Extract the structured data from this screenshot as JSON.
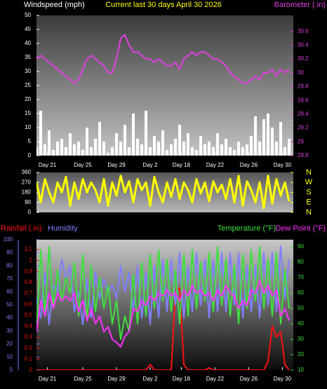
{
  "chart_data": [
    {
      "type": "combo",
      "title": "Current last 30 days April 30 2026",
      "x": [
        0,
        0.5,
        1,
        1.5,
        2,
        2.5,
        3,
        3.5,
        4,
        4.5,
        5,
        5.5,
        6,
        6.5,
        7,
        7.5,
        8,
        8.5,
        9,
        9.5,
        10,
        10.5,
        11,
        11.5,
        12,
        12.5,
        13,
        13.5,
        14,
        14.5,
        15,
        15.5,
        16,
        16.5,
        17,
        17.5,
        18,
        18.5,
        19,
        19.5,
        20,
        20.5,
        21,
        21.5,
        22,
        22.5,
        23,
        23.5,
        24,
        24.5,
        25,
        25.5,
        26,
        26.5,
        27,
        27.5,
        28,
        28.5,
        29,
        29.5,
        30
      ],
      "xlim": [
        0,
        30.5
      ],
      "xticks": [
        {
          "value": 1.3,
          "label": "Day 21"
        },
        {
          "value": 5.5,
          "label": "Day 25"
        },
        {
          "value": 9.5,
          "label": "Day 29"
        },
        {
          "value": 13.5,
          "label": "Day 2"
        },
        {
          "value": 17.2,
          "label": "Day 18"
        },
        {
          "value": 21.2,
          "label": "Day 22"
        },
        {
          "value": 25.2,
          "label": "Day 26"
        },
        {
          "value": 29.2,
          "label": "Day 30"
        }
      ],
      "ylim": [
        0,
        50
      ],
      "yticks": [
        0,
        5,
        10,
        15,
        20,
        25,
        30,
        35,
        40,
        45,
        50
      ],
      "y2lim": [
        28.8,
        30.83
      ],
      "y2ticks": [
        28.8,
        29,
        29.2,
        29.4,
        29.6,
        29.8,
        30,
        30.2,
        30.4,
        30.6
      ],
      "series": [
        {
          "name": "Windspeed (mph)",
          "type": "bar",
          "color": "#ffffff",
          "values": [
            3,
            16,
            4,
            9,
            2,
            5,
            6,
            3,
            8,
            4,
            5,
            2,
            10,
            3,
            6,
            12,
            5,
            1,
            3,
            8,
            5,
            11,
            3,
            15,
            6,
            4,
            16,
            3,
            7,
            5,
            9,
            2,
            4,
            6,
            11,
            5,
            8,
            3,
            2,
            7,
            4,
            5,
            3,
            8,
            4,
            6,
            3,
            2,
            5,
            3,
            4,
            7,
            14,
            5,
            13,
            15,
            10,
            5,
            12,
            3,
            6
          ]
        },
        {
          "name": "Barometer (.in)",
          "type": "line",
          "axis": "y2",
          "color": "#e040e0",
          "values": [
            30.2,
            30.25,
            30.2,
            30.15,
            30.1,
            30.05,
            30.0,
            29.95,
            29.9,
            29.85,
            29.9,
            30.05,
            30.2,
            30.25,
            30.2,
            30.15,
            30.1,
            30.0,
            30.0,
            30.2,
            30.5,
            30.55,
            30.4,
            30.3,
            30.3,
            30.25,
            30.2,
            30.2,
            30.15,
            30.2,
            30.15,
            30.1,
            30.1,
            30.15,
            30.05,
            30.2,
            30.25,
            30.3,
            30.25,
            30.3,
            30.3,
            30.25,
            30.2,
            30.2,
            30.15,
            30.1,
            30.0,
            29.95,
            29.9,
            29.85,
            29.85,
            29.9,
            29.95,
            29.9,
            30.0,
            30.0,
            30.05,
            29.95,
            30.05,
            30.0,
            30.05
          ]
        }
      ]
    },
    {
      "type": "line",
      "x": [
        0,
        0.5,
        1,
        1.5,
        2,
        2.5,
        3,
        3.5,
        4,
        4.5,
        5,
        5.5,
        6,
        6.5,
        7,
        7.5,
        8,
        8.5,
        9,
        9.5,
        10,
        10.5,
        11,
        11.5,
        12,
        12.5,
        13,
        13.5,
        14,
        14.5,
        15,
        15.5,
        16,
        16.5,
        17,
        17.5,
        18,
        18.5,
        19,
        19.5,
        20,
        20.5,
        21,
        21.5,
        22,
        22.5,
        23,
        23.5,
        24,
        24.5,
        25,
        25.5,
        26,
        26.5,
        27,
        27.5,
        28,
        28.5,
        29,
        29.5,
        30
      ],
      "xlim": [
        0,
        30.5
      ],
      "ylim": [
        0,
        360
      ],
      "yticks": [
        0,
        90,
        180,
        270,
        360
      ],
      "y2lim": [
        0,
        360
      ],
      "y2ticks": [
        {
          "value": 360,
          "label": "N"
        },
        {
          "value": 270,
          "label": "W"
        },
        {
          "value": 180,
          "label": "S"
        },
        {
          "value": 90,
          "label": "E"
        },
        {
          "value": 0,
          "label": "N"
        }
      ],
      "series": [
        {
          "color": "#ffff00",
          "values": [
            270,
            90,
            300,
            180,
            90,
            270,
            180,
            320,
            60,
            270,
            120,
            300,
            180,
            270,
            200,
            90,
            300,
            60,
            270,
            150,
            330,
            180,
            280,
            90,
            300,
            200,
            270,
            60,
            320,
            180,
            90,
            270,
            140,
            300,
            120,
            270,
            200,
            90,
            300,
            170,
            270,
            100,
            280,
            180,
            250,
            120,
            300,
            90,
            330,
            60,
            280,
            200,
            90,
            270,
            40,
            330,
            80,
            300,
            150,
            270,
            100
          ]
        }
      ]
    },
    {
      "type": "line",
      "x": [
        0,
        0.5,
        1,
        1.5,
        2,
        2.5,
        3,
        3.5,
        4,
        4.5,
        5,
        5.5,
        6,
        6.5,
        7,
        7.5,
        8,
        8.5,
        9,
        9.5,
        10,
        10.5,
        11,
        11.5,
        12,
        12.5,
        13,
        13.5,
        14,
        14.5,
        15,
        15.5,
        16,
        16.5,
        17,
        17.5,
        18,
        18.5,
        19,
        19.5,
        20,
        20.5,
        21,
        21.5,
        22,
        22.5,
        23,
        23.5,
        24,
        24.5,
        25,
        25.5,
        26,
        26.5,
        27,
        27.5,
        28,
        28.5,
        29,
        29.5,
        30
      ],
      "xlim": [
        0,
        30.5
      ],
      "xticks": [
        {
          "value": 1.3,
          "label": "Day 21"
        },
        {
          "value": 5.5,
          "label": "Day 25"
        },
        {
          "value": 9.5,
          "label": "Day 29"
        },
        {
          "value": 13.5,
          "label": "Day 2"
        },
        {
          "value": 17.2,
          "label": "Day 18"
        },
        {
          "value": 21.2,
          "label": "Day 22"
        },
        {
          "value": 25.2,
          "label": "Day 26"
        },
        {
          "value": 29.2,
          "label": "Day 30"
        }
      ],
      "ylim": [
        0,
        1.19
      ],
      "yticks": [
        0,
        0.1,
        0.2,
        0.3,
        0.4,
        0.5,
        0.6,
        0.7,
        0.8,
        0.9,
        1,
        1.1
      ],
      "y3lim": [
        0,
        100
      ],
      "y3ticks": [
        0,
        10,
        20,
        30,
        40,
        50,
        60,
        70,
        80,
        90,
        100
      ],
      "y2lim": [
        10,
        94.6
      ],
      "y2ticks": [
        10,
        20,
        30,
        40,
        50,
        60,
        70,
        80,
        90
      ],
      "series": [
        {
          "name": "Rainfall (.in)",
          "color": "#ff1010",
          "values": [
            0,
            0,
            0,
            0,
            0,
            0,
            0,
            0,
            0,
            0,
            0,
            0,
            0,
            0,
            0,
            0,
            0,
            0,
            0,
            0,
            0,
            0,
            0,
            0,
            0,
            0,
            0,
            0.05,
            0,
            0,
            0,
            0,
            0,
            0.72,
            0.75,
            0.05,
            0,
            0,
            0,
            0,
            0,
            0.02,
            0,
            0,
            0,
            0,
            0,
            0,
            0,
            0,
            0,
            0,
            0,
            0,
            0,
            0.08,
            0.4,
            0.3,
            0.35,
            0.05,
            0
          ]
        },
        {
          "name": "Humidity",
          "axis": "y3",
          "color": "#8080ff",
          "values": [
            55,
            40,
            75,
            35,
            65,
            60,
            85,
            70,
            80,
            45,
            60,
            35,
            70,
            40,
            75,
            55,
            70,
            60,
            65,
            55,
            80,
            60,
            75,
            45,
            80,
            40,
            75,
            35,
            80,
            40,
            85,
            45,
            85,
            50,
            90,
            40,
            80,
            45,
            90,
            50,
            85,
            40,
            85,
            45,
            90,
            45,
            90,
            50,
            90,
            40,
            80,
            45,
            80,
            40,
            90,
            50,
            90,
            45,
            95,
            55,
            85
          ]
        },
        {
          "name": "Temperature (°F)",
          "axis": "y2",
          "color": "#40e040",
          "values": [
            35,
            88,
            45,
            90,
            50,
            75,
            55,
            70,
            60,
            80,
            45,
            85,
            42,
            78,
            48,
            70,
            50,
            65,
            40,
            55,
            30,
            45,
            35,
            72,
            40,
            80,
            45,
            85,
            50,
            88,
            55,
            82,
            48,
            75,
            40,
            85,
            45,
            88,
            50,
            80,
            55,
            86,
            48,
            90,
            52,
            82,
            45,
            78,
            40,
            85,
            50,
            88,
            55,
            90,
            50,
            82,
            45,
            86,
            40,
            75,
            50
          ]
        },
        {
          "name": "Dew Point (°F)",
          "axis": "y2",
          "color": "#ff30ff",
          "values": [
            35,
            55,
            45,
            60,
            50,
            60,
            55,
            58,
            55,
            60,
            48,
            55,
            42,
            50,
            40,
            45,
            35,
            38,
            30,
            28,
            25,
            32,
            35,
            50,
            48,
            55,
            52,
            58,
            55,
            60,
            58,
            62,
            58,
            60,
            55,
            62,
            58,
            65,
            60,
            62,
            58,
            60,
            55,
            62,
            58,
            65,
            60,
            58,
            50,
            55,
            52,
            62,
            60,
            68,
            60,
            65,
            58,
            62,
            45,
            50,
            42
          ]
        }
      ]
    }
  ]
}
